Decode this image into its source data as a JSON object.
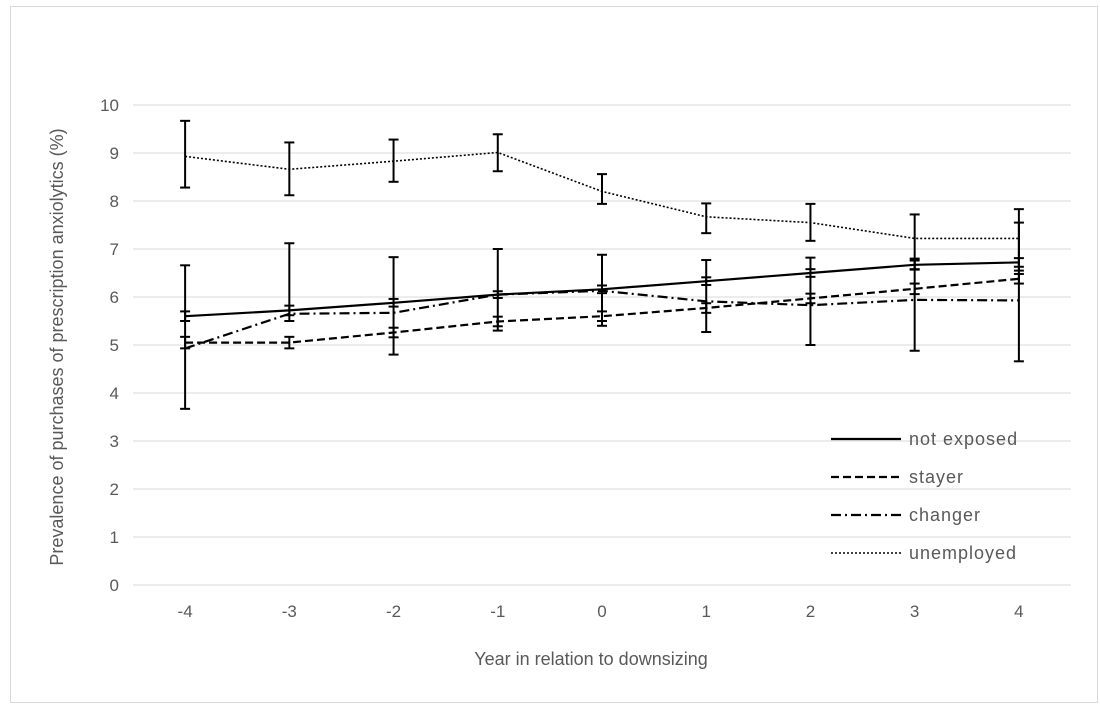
{
  "chart_data": {
    "type": "line",
    "title": "",
    "xlabel": "Year in relation to downsizing",
    "ylabel": "Prevalence of purchases of prescription anxiolytics (%)",
    "categories": [
      "-4",
      "-3",
      "-2",
      "-1",
      "0",
      "1",
      "2",
      "3",
      "4"
    ],
    "ylim": [
      0,
      10
    ],
    "yticks": [
      "0",
      "1",
      "2",
      "3",
      "4",
      "5",
      "6",
      "7",
      "8",
      "9",
      "10"
    ],
    "grid": "horizontal",
    "legend_position": "bottom-right",
    "series": [
      {
        "name": "not exposed",
        "dash": "solid",
        "values": [
          5.6,
          5.72,
          5.88,
          6.05,
          6.16,
          6.33,
          6.5,
          6.67,
          6.72
        ],
        "err_low": [
          5.5,
          5.62,
          5.8,
          5.98,
          6.08,
          6.25,
          6.42,
          6.58,
          6.63
        ],
        "err_high": [
          5.7,
          5.82,
          5.96,
          6.12,
          6.24,
          6.41,
          6.58,
          6.76,
          6.81
        ]
      },
      {
        "name": "stayer",
        "dash": "dashed",
        "values": [
          5.05,
          5.05,
          5.26,
          5.49,
          5.6,
          5.77,
          5.97,
          6.17,
          6.38
        ],
        "err_low": [
          4.93,
          4.93,
          5.16,
          5.39,
          5.5,
          5.67,
          5.87,
          6.06,
          6.28
        ],
        "err_high": [
          5.17,
          5.17,
          5.36,
          5.59,
          5.7,
          5.87,
          6.07,
          6.28,
          6.48
        ]
      },
      {
        "name": "changer",
        "dash": "dash-dot",
        "values": [
          4.93,
          5.65,
          5.67,
          6.05,
          6.13,
          5.91,
          5.83,
          5.94,
          5.93
        ],
        "err_low": [
          3.67,
          5.5,
          4.8,
          5.3,
          5.4,
          5.27,
          5.0,
          4.88,
          4.66
        ],
        "err_high": [
          6.66,
          7.12,
          6.83,
          7.0,
          6.88,
          6.77,
          6.82,
          6.8,
          7.55
        ]
      },
      {
        "name": "unemployed",
        "dash": "dotted",
        "values": [
          8.93,
          8.66,
          8.83,
          9.01,
          8.2,
          7.67,
          7.55,
          7.22,
          7.22
        ],
        "err_low": [
          8.28,
          8.12,
          8.4,
          8.62,
          7.94,
          7.33,
          7.17,
          6.57,
          6.55
        ],
        "err_high": [
          9.67,
          9.22,
          9.28,
          9.39,
          8.56,
          7.95,
          7.94,
          7.72,
          7.83
        ]
      }
    ]
  }
}
